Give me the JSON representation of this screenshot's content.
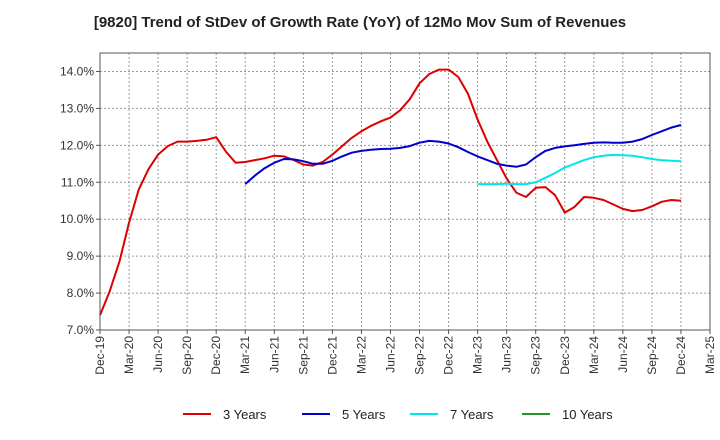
{
  "chart_data": {
    "type": "line",
    "title": "[9820]  Trend of StDev of Growth Rate (YoY) of 12Mo Mov Sum of Revenues",
    "xlabel": "",
    "ylabel": "",
    "ylim": [
      7.0,
      14.5
    ],
    "y_ticks": [
      7.0,
      8.0,
      9.0,
      10.0,
      11.0,
      12.0,
      13.0,
      14.0
    ],
    "y_tick_labels": [
      "7.0%",
      "8.0%",
      "9.0%",
      "10.0%",
      "11.0%",
      "12.0%",
      "13.0%",
      "14.0%"
    ],
    "x_tick_labels": [
      "Dec-19",
      "Mar-20",
      "Jun-20",
      "Sep-20",
      "Dec-20",
      "Mar-21",
      "Jun-21",
      "Sep-21",
      "Dec-21",
      "Mar-22",
      "Jun-22",
      "Sep-22",
      "Dec-22",
      "Mar-23",
      "Jun-23",
      "Sep-23",
      "Dec-23",
      "Mar-24",
      "Jun-24",
      "Sep-24",
      "Dec-24",
      "Mar-25"
    ],
    "grid": true,
    "legend_position": "bottom",
    "series": [
      {
        "name": "3 Years",
        "color": "#dd0000",
        "start_index": 0,
        "values": [
          7.4,
          8.05,
          8.85,
          9.9,
          10.8,
          11.35,
          11.75,
          11.98,
          12.1,
          12.1,
          12.12,
          12.15,
          12.22,
          11.83,
          11.53,
          11.55,
          11.6,
          11.65,
          11.72,
          11.7,
          11.6,
          11.48,
          11.45,
          11.55,
          11.75,
          11.98,
          12.2,
          12.38,
          12.53,
          12.65,
          12.75,
          12.95,
          13.25,
          13.68,
          13.93,
          14.05,
          14.05,
          13.85,
          13.4,
          12.7,
          12.1,
          11.6,
          11.1,
          10.72,
          10.6,
          10.85,
          10.87,
          10.65,
          10.18,
          10.33,
          10.6,
          10.58,
          10.52,
          10.4,
          10.28,
          10.22,
          10.25,
          10.35,
          10.47,
          10.52,
          10.5
        ]
      },
      {
        "name": "5 Years",
        "color": "#0000cc",
        "start_index": 15,
        "values": [
          10.95,
          11.18,
          11.38,
          11.53,
          11.63,
          11.62,
          11.57,
          11.5,
          11.5,
          11.58,
          11.7,
          11.8,
          11.85,
          11.88,
          11.9,
          11.91,
          11.93,
          11.98,
          12.07,
          12.12,
          12.1,
          12.05,
          11.95,
          11.82,
          11.7,
          11.6,
          11.5,
          11.45,
          11.42,
          11.48,
          11.68,
          11.85,
          11.93,
          11.97,
          12.0,
          12.04,
          12.07,
          12.08,
          12.07,
          12.07,
          12.1,
          12.17,
          12.28,
          12.38,
          12.48,
          12.55
        ]
      },
      {
        "name": "7 Years",
        "color": "#00e5ee",
        "start_index": 39,
        "values": [
          10.95,
          10.95,
          10.95,
          10.96,
          10.95,
          10.95,
          11.0,
          11.12,
          11.25,
          11.4,
          11.5,
          11.6,
          11.68,
          11.72,
          11.74,
          11.73,
          11.72,
          11.68,
          11.63,
          11.6,
          11.58,
          11.57
        ]
      },
      {
        "name": "10 Years",
        "color": "#229922",
        "start_index": 0,
        "values": []
      }
    ]
  }
}
